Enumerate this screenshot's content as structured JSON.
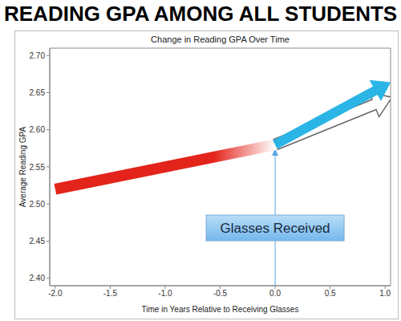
{
  "chart_data": {
    "type": "line",
    "title": "READING GPA AMONG ALL STUDENTS",
    "subtitle": "Change in Reading GPA Over Time",
    "x_label": "Time in Years Relative to Receiving Glasses",
    "y_label": "Average Reading GPA",
    "x": [
      -2,
      0,
      1
    ],
    "series": [
      {
        "color": "#e3241b",
        "values": [
          2.52,
          2.58,
          null
        ]
      },
      {
        "color": "#ffffff",
        "values": [
          null,
          2.58,
          2.64
        ]
      },
      {
        "color": "#2ab5e6",
        "values": [
          null,
          2.58,
          2.66
        ]
      }
    ],
    "xlim": [
      -2.05,
      1.05
    ],
    "ylim": [
      2.39,
      2.71
    ],
    "xticks": [
      {
        "value": -2,
        "label": "-2.0"
      },
      -1.5,
      {
        "value": -1,
        "label": "-1.0"
      },
      -0.5,
      {
        "value": 0,
        "label": "0.0"
      },
      0.5,
      {
        "value": 1,
        "label": "1.0"
      }
    ],
    "yticks": [
      {
        "value": 2.4,
        "label": "2.40"
      },
      2.45,
      {
        "value": 2.5,
        "label": "2.50"
      },
      2.55,
      {
        "value": 2.6,
        "label": "2.60"
      },
      2.65,
      {
        "value": 2.7,
        "label": "2.70"
      }
    ],
    "grid": false,
    "annotations": [
      {
        "text": "Glasses Received",
        "x": 0,
        "y": 2.575
      }
    ]
  }
}
